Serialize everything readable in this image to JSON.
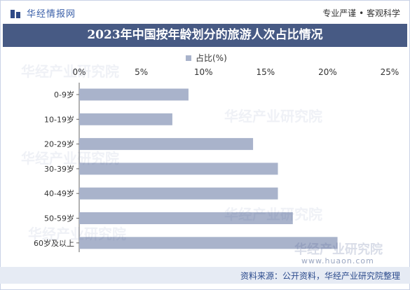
{
  "header": {
    "brand": "华经情报网",
    "slogan": "专业严谨 • 客观科学"
  },
  "watermark": {
    "text": "华经产业研究院",
    "url": "www.huaon.com"
  },
  "footer": {
    "source": "资料来源：公开资料，华经产业研究院整理"
  },
  "colors": {
    "bar": "#a9b3cb",
    "title_bg": "#475a84",
    "footer_bg": "#e6ebf4"
  },
  "chart_data": {
    "type": "bar",
    "orientation": "horizontal",
    "title": "2023年中国按年龄划分的旅游人次占比情况",
    "categories": [
      "0-9岁",
      "10-19岁",
      "20-29岁",
      "30-39岁",
      "40-49岁",
      "50-59岁",
      "60岁及以上"
    ],
    "series": [
      {
        "name": "占比(%)",
        "values": [
          8.8,
          7.5,
          14.0,
          16.0,
          16.0,
          17.2,
          20.8
        ]
      }
    ],
    "xlim": [
      0,
      25
    ],
    "xticks": [
      "0%",
      "5%",
      "10%",
      "15%",
      "20%",
      "25%"
    ],
    "grid": false,
    "legend": "top-center"
  }
}
